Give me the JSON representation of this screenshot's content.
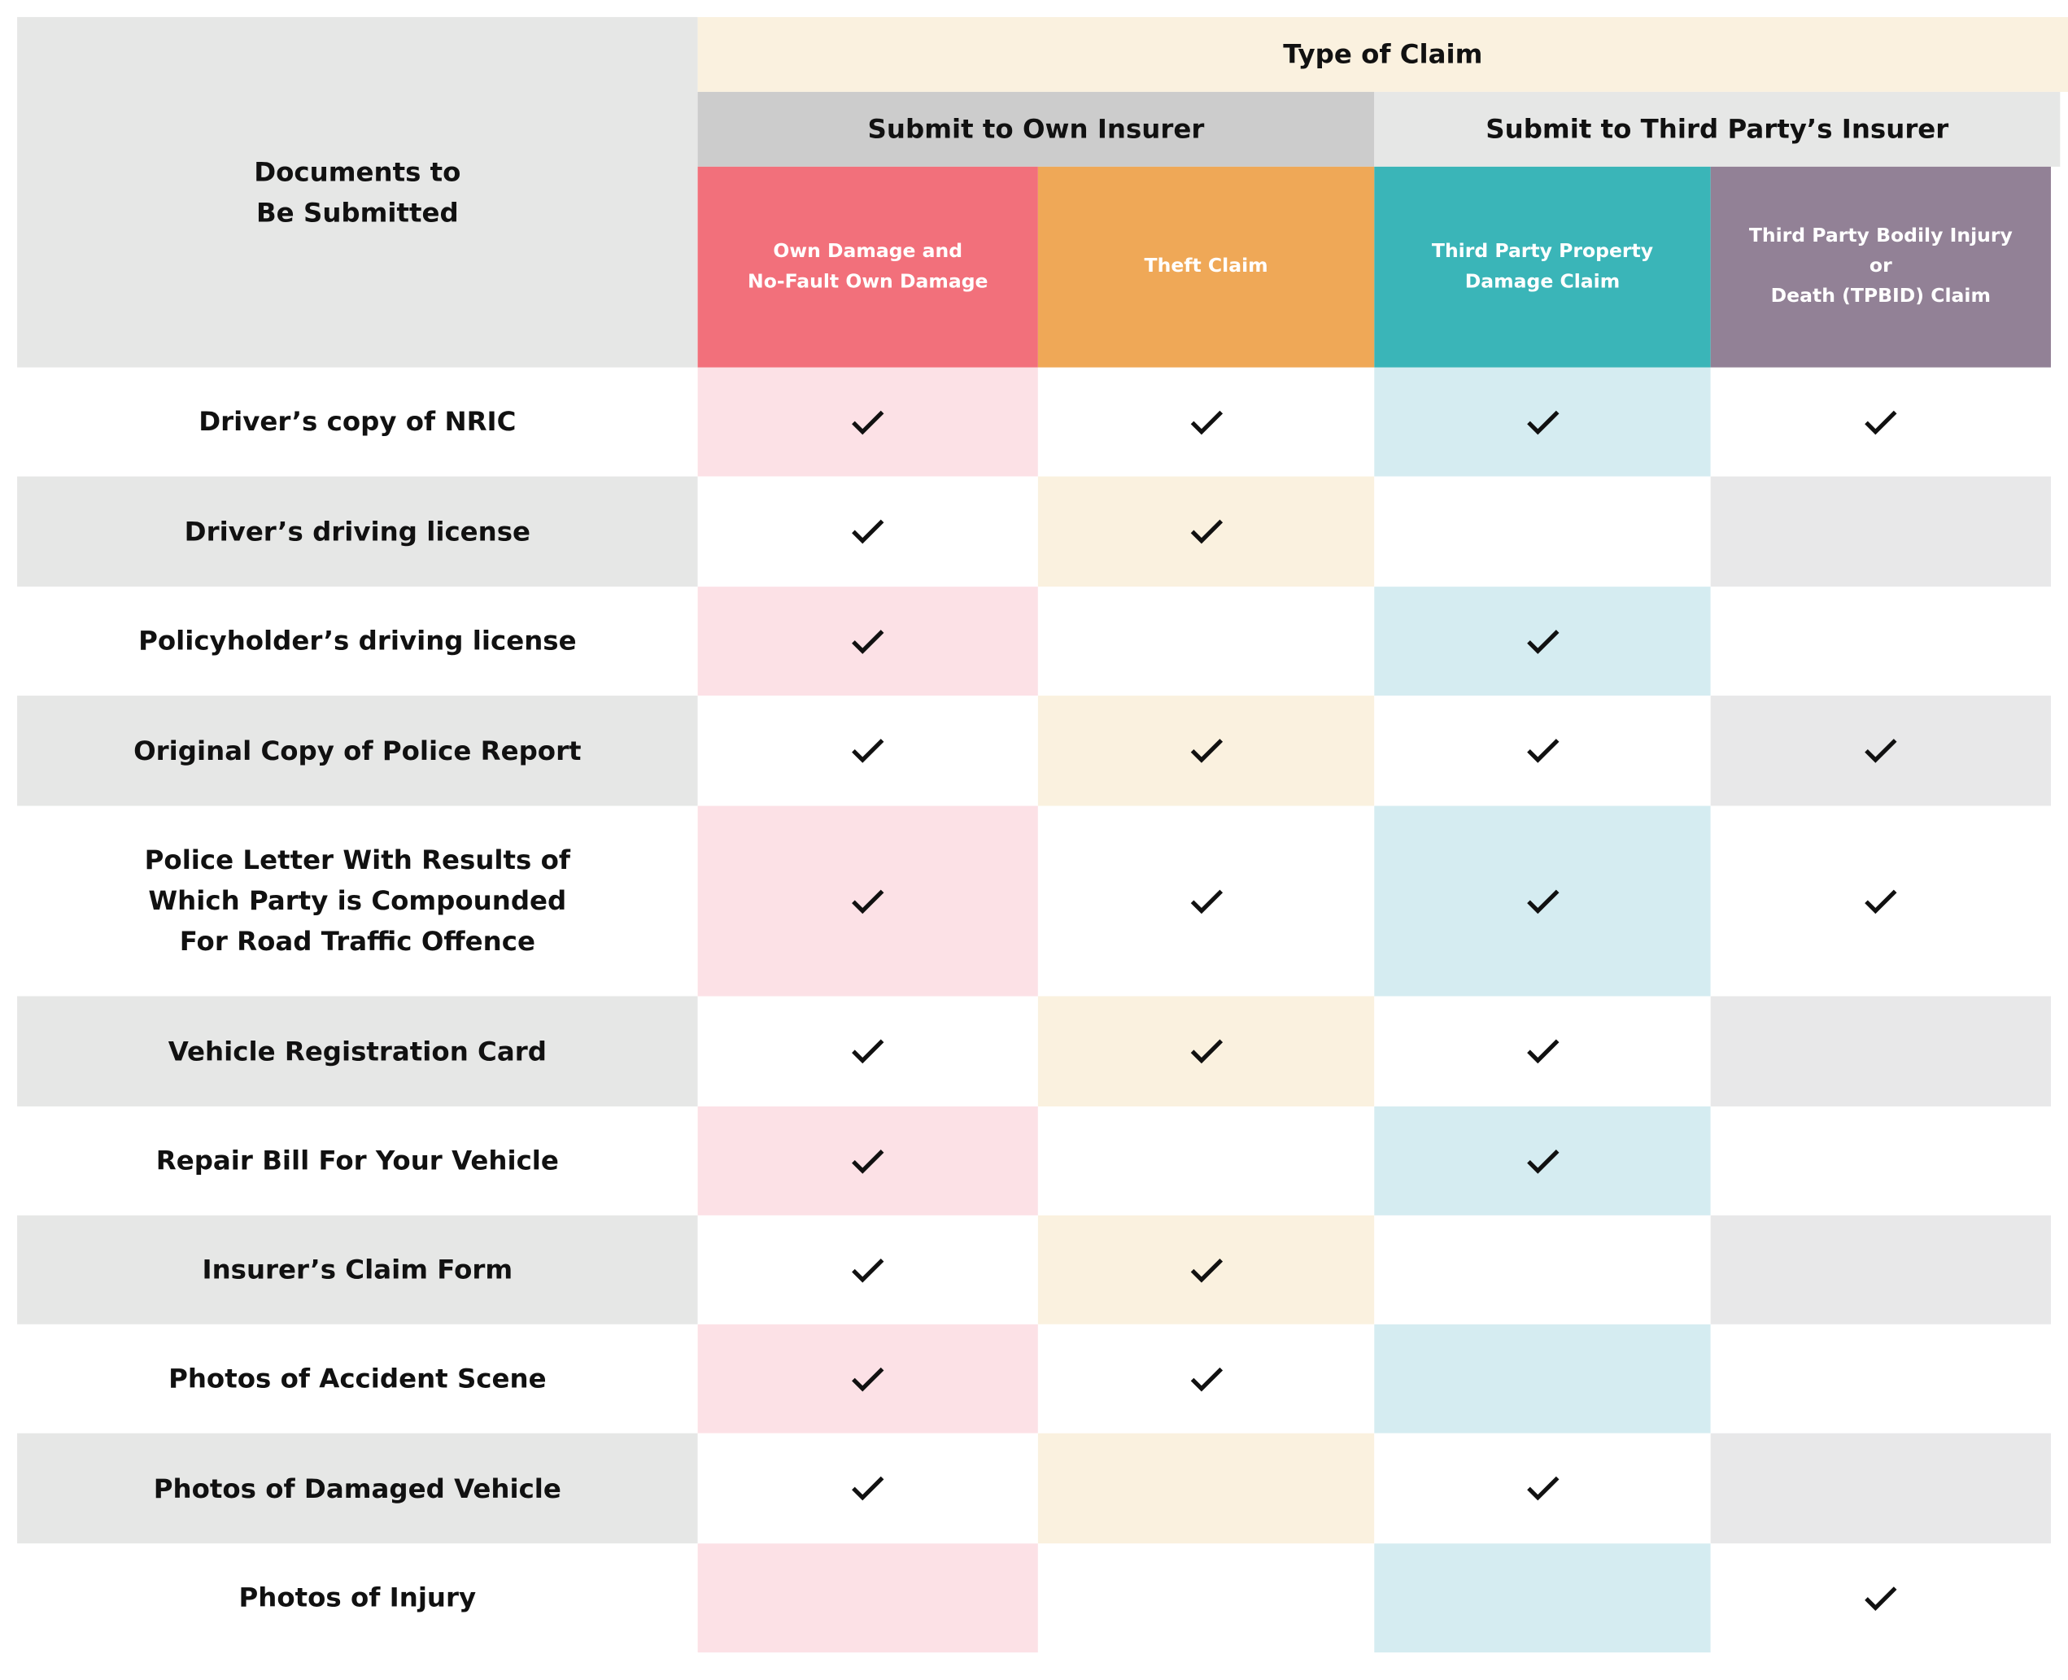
{
  "header": {
    "row_label": "Documents to\nBe Submitted",
    "title": "Type of Claim",
    "groups": [
      "Submit to Own Insurer",
      "Submit to Third Party’s Insurer"
    ],
    "columns": [
      "Own Damage and\nNo-Fault Own Damage",
      "Theft Claim",
      "Third Party Property\nDamage Claim",
      "Third Party Bodily Injury\nor\nDeath (TPBID) Claim"
    ]
  },
  "table": {
    "rows": [
      {
        "label": "Driver’s copy of NRIC",
        "checks": [
          true,
          true,
          true,
          true
        ]
      },
      {
        "label": "Driver’s driving license",
        "checks": [
          true,
          true,
          false,
          false
        ]
      },
      {
        "label": "Policyholder’s driving license",
        "checks": [
          true,
          false,
          true,
          false
        ]
      },
      {
        "label": "Original Copy of Police Report",
        "checks": [
          true,
          true,
          true,
          true
        ]
      },
      {
        "label": "Police Letter With Results of\nWhich Party is Compounded\nFor Road Traffic Offence",
        "checks": [
          true,
          true,
          true,
          true
        ]
      },
      {
        "label": "Vehicle Registration Card",
        "checks": [
          true,
          true,
          true,
          false
        ]
      },
      {
        "label": "Repair Bill For Your Vehicle",
        "checks": [
          true,
          false,
          true,
          false
        ]
      },
      {
        "label": "Insurer’s Claim Form",
        "checks": [
          true,
          true,
          false,
          false
        ]
      },
      {
        "label": "Photos of Accident Scene",
        "checks": [
          true,
          true,
          false,
          false
        ]
      },
      {
        "label": "Photos of Damaged Vehicle",
        "checks": [
          true,
          false,
          true,
          false
        ]
      },
      {
        "label": "Photos of Injury",
        "checks": [
          false,
          false,
          false,
          true
        ]
      }
    ]
  }
}
